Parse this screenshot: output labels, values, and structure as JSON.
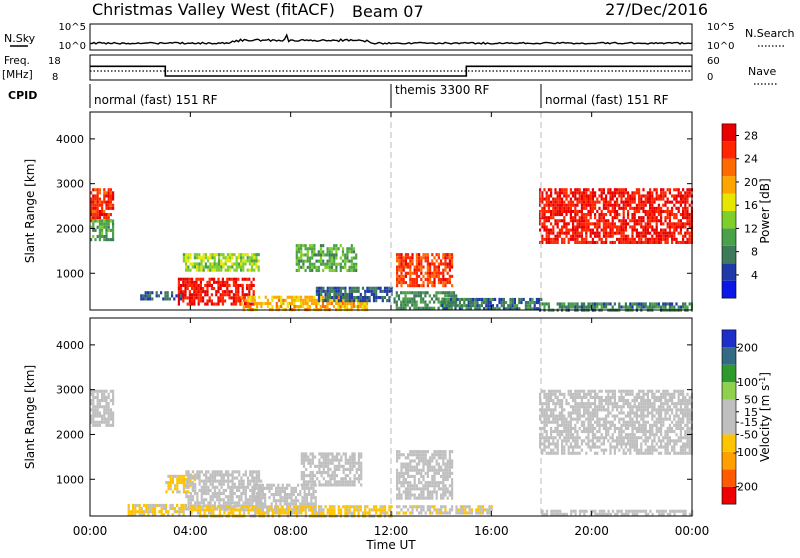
{
  "header": {
    "station": "Christmas Valley West (fitACF)",
    "beam": "Beam 07",
    "date": "27/Dec/2016"
  },
  "nsky_panel": {
    "left_label": "N.Sky",
    "left_ticks": [
      "10^5",
      "10^0"
    ],
    "right_label": "N.Search",
    "right_ticks": [
      "10^5",
      "10^0"
    ]
  },
  "freq_panel": {
    "left_label_line1": "Freq.",
    "left_label_line2": "[MHz]",
    "left_ticks": [
      "18",
      "8"
    ],
    "right_label": "Nave",
    "right_ticks": [
      "60",
      "0"
    ],
    "frequency_steps": [
      {
        "from_h": 0,
        "to_h": 3.0,
        "mhz": 13.5
      },
      {
        "from_h": 3.0,
        "to_h": 15.0,
        "mhz": 9.6
      },
      {
        "from_h": 15.0,
        "to_h": 24.0,
        "mhz": 13.5
      }
    ]
  },
  "cpid_panel": {
    "label": "CPID",
    "segments": [
      {
        "from_h": 0,
        "to_h": 12,
        "text": "normal (fast) 151 RF"
      },
      {
        "from_h": 12,
        "to_h": 18,
        "text": "themis 3300 RF"
      },
      {
        "from_h": 18,
        "to_h": 24,
        "text": "normal (fast) 151 RF"
      }
    ]
  },
  "x_axis": {
    "label": "Time UT",
    "ticks": [
      "00:00",
      "04:00",
      "08:00",
      "12:00",
      "16:00",
      "20:00",
      "00:00"
    ]
  },
  "colors": {
    "power_scale": [
      "#0a17e6",
      "#1f3aa8",
      "#3d7a5a",
      "#4aa14a",
      "#7fcf2a",
      "#e6e600",
      "#ffa500",
      "#ff6a00",
      "#ff2600",
      "#e80000"
    ],
    "velocity_scale": [
      "#ee0000",
      "#ff5a00",
      "#ff9f00",
      "#ffc400",
      "#bfbfbf",
      "#bfbfbf",
      "#8fd14f",
      "#2e9a2e",
      "#336b82",
      "#1e2fc8"
    ],
    "mode_change_line": "#bbbbbb"
  },
  "chart_data": [
    {
      "type": "heatmap",
      "title": "",
      "xlabel": "",
      "ylabel": "Slant Range [km]",
      "xlim": [
        0,
        24
      ],
      "ylim": [
        180,
        4600
      ],
      "y_ticks": [
        1000,
        2000,
        3000,
        4000
      ],
      "colorbar": {
        "label": "Power [dB]",
        "ticks": [
          4,
          8,
          12,
          16,
          20,
          24,
          28
        ],
        "range": [
          0,
          30
        ]
      },
      "echo_regions": [
        {
          "t0": 0.0,
          "t1": 0.9,
          "r0": 2200,
          "r1": 2900,
          "value": 26
        },
        {
          "t0": 0.0,
          "t1": 0.9,
          "r0": 1750,
          "r1": 2200,
          "value": 10
        },
        {
          "t0": 2.0,
          "t1": 3.8,
          "r0": 400,
          "r1": 600,
          "value": 6
        },
        {
          "t0": 3.5,
          "t1": 6.5,
          "r0": 300,
          "r1": 900,
          "value": 27
        },
        {
          "t0": 3.7,
          "t1": 6.7,
          "r0": 1050,
          "r1": 1450,
          "value": 14
        },
        {
          "t0": 6.0,
          "t1": 11.0,
          "r0": 220,
          "r1": 500,
          "value": 19
        },
        {
          "t0": 8.2,
          "t1": 10.6,
          "r0": 1050,
          "r1": 1650,
          "value": 11
        },
        {
          "t0": 9.0,
          "t1": 12.0,
          "r0": 400,
          "r1": 700,
          "value": 6
        },
        {
          "t0": 12.2,
          "t1": 14.4,
          "r0": 700,
          "r1": 1450,
          "value": 25
        },
        {
          "t0": 12.1,
          "t1": 14.6,
          "r0": 250,
          "r1": 600,
          "value": 9
        },
        {
          "t0": 14.0,
          "t1": 18.0,
          "r0": 200,
          "r1": 450,
          "value": 7
        },
        {
          "t0": 17.9,
          "t1": 24.0,
          "r0": 1700,
          "r1": 2900,
          "value": 27
        },
        {
          "t0": 17.9,
          "t1": 24.0,
          "r0": 200,
          "r1": 350,
          "value": 8
        }
      ]
    },
    {
      "type": "heatmap",
      "title": "",
      "xlabel": "Time UT",
      "ylabel": "Slant Range [km]",
      "xlim": [
        0,
        24
      ],
      "ylim": [
        180,
        4600
      ],
      "y_ticks": [
        1000,
        2000,
        3000,
        4000
      ],
      "colorbar": {
        "label": "Velocity [m s^-1]",
        "ticks": [
          -200,
          -100,
          -50,
          -15,
          15,
          50,
          100,
          200
        ],
        "range": [
          -250,
          250
        ]
      },
      "echo_regions": [
        {
          "t0": 0.0,
          "t1": 0.9,
          "r0": 2200,
          "r1": 3000,
          "value": 0
        },
        {
          "t0": 1.5,
          "t1": 3.8,
          "r0": 200,
          "r1": 450,
          "value": -60
        },
        {
          "t0": 3.0,
          "t1": 4.2,
          "r0": 700,
          "r1": 1100,
          "value": -60
        },
        {
          "t0": 3.8,
          "t1": 6.8,
          "r0": 350,
          "r1": 1200,
          "value": 0
        },
        {
          "t0": 6.5,
          "t1": 9.0,
          "r0": 300,
          "r1": 900,
          "value": 0
        },
        {
          "t0": 4.0,
          "t1": 12.0,
          "r0": 200,
          "r1": 420,
          "value": -60
        },
        {
          "t0": 8.4,
          "t1": 10.8,
          "r0": 900,
          "r1": 1600,
          "value": 0
        },
        {
          "t0": 12.2,
          "t1": 14.4,
          "r0": 600,
          "r1": 1650,
          "value": 0
        },
        {
          "t0": 12.2,
          "t1": 16.0,
          "r0": 220,
          "r1": 420,
          "value": -40
        },
        {
          "t0": 17.9,
          "t1": 24.0,
          "r0": 1600,
          "r1": 3000,
          "value": 0
        },
        {
          "t0": 18.0,
          "t1": 24.0,
          "r0": 200,
          "r1": 320,
          "value": 20
        }
      ]
    }
  ]
}
